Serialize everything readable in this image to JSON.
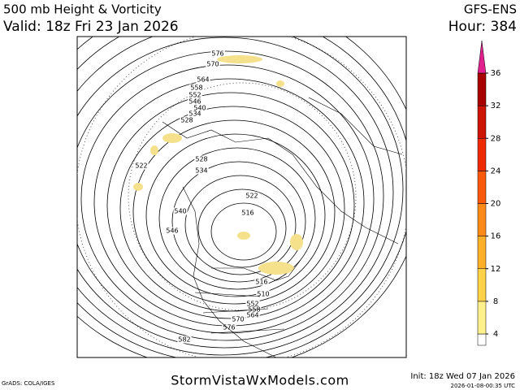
{
  "header": {
    "title": "500 mb Height & Vorticity",
    "valid": "Valid: 18z Fri 23 Jan 2026",
    "model": "GFS-ENS",
    "hour": "Hour: 384"
  },
  "colorbar": {
    "ticks": [
      4,
      8,
      12,
      16,
      20,
      24,
      28,
      32,
      36
    ],
    "colors": [
      "#fff08c",
      "#ffd24a",
      "#ffb02a",
      "#ff8a1a",
      "#ff5a0c",
      "#f02a00",
      "#cc1400",
      "#a80000"
    ],
    "above_color": "#e0208c"
  },
  "map": {
    "contour_labels": [
      "576",
      "570",
      "564",
      "558",
      "552",
      "546",
      "540",
      "534",
      "528",
      "522",
      "528",
      "534",
      "540",
      "546",
      "522",
      "516",
      "516",
      "510",
      "552",
      "558",
      "564",
      "570",
      "576",
      "582"
    ]
  },
  "footer": {
    "grads": "GrADS: COLA/IGES",
    "site": "StormVistaWxModels.com",
    "init": "Init: 18z Wed 07 Jan 2026",
    "timestamp": "2026-01-08-00:35 UTC"
  }
}
